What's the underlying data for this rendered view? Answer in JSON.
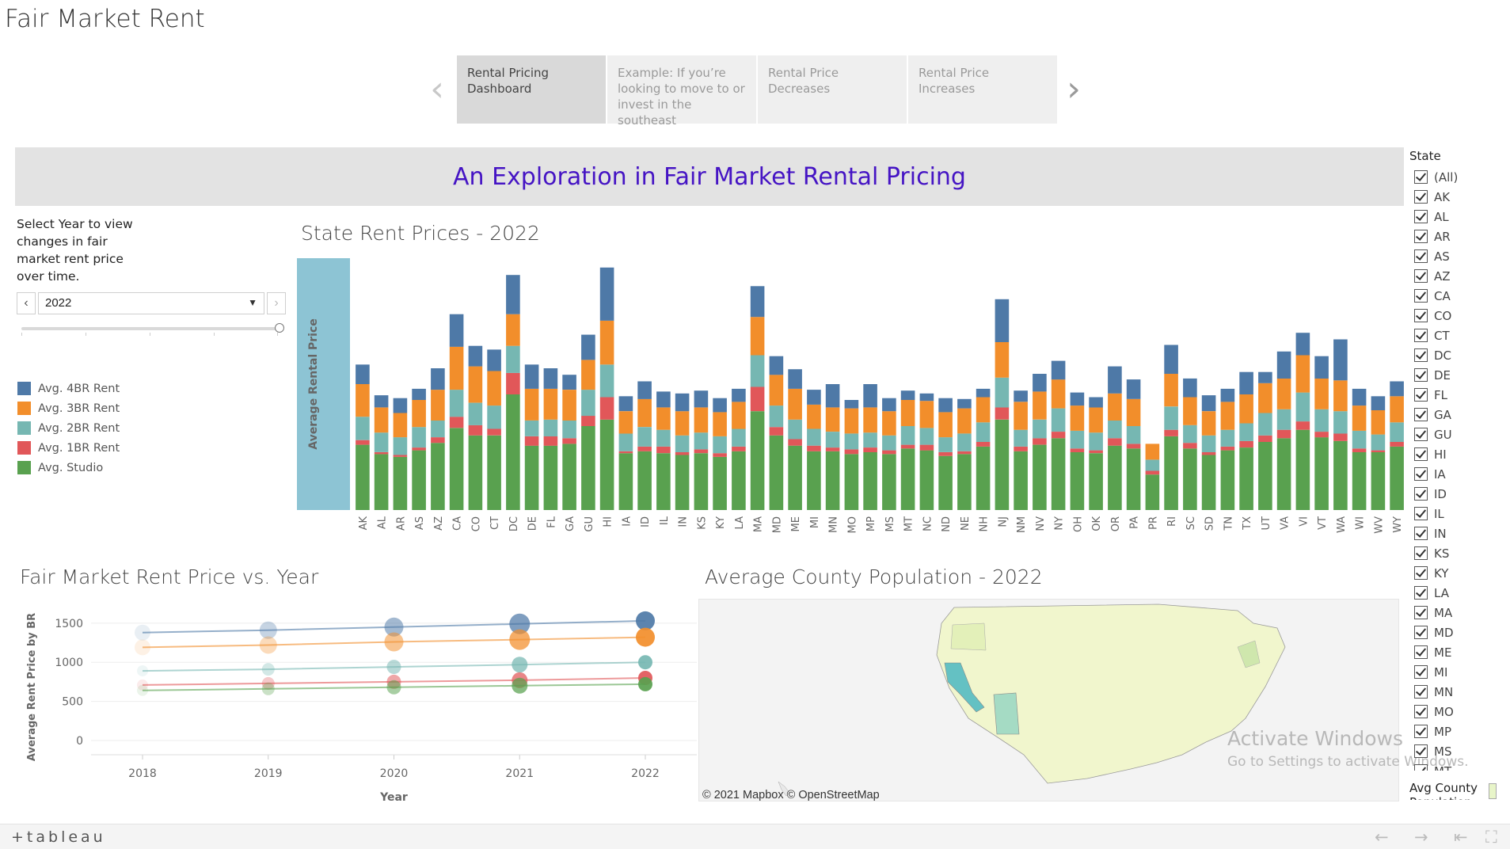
{
  "story": {
    "title": "Fair Market Rent",
    "prev_arrow": "‹",
    "next_arrow": "›",
    "points": [
      {
        "label": "Rental Pricing Dashboard",
        "active": true
      },
      {
        "label": "Example: If you’re looking to move to or invest in the southeast",
        "active": false
      },
      {
        "label": "Rental Price Decreases",
        "active": false
      },
      {
        "label": "Rental Price Increases",
        "active": false
      }
    ]
  },
  "banner": {
    "title": "An Exploration in Fair Market Rental Pricing"
  },
  "year_control": {
    "note": "Select Year to view changes in fair market rent price over time.",
    "selected": "2022",
    "prev": "‹",
    "next": "›"
  },
  "legend": [
    {
      "label": "Avg. 4BR Rent",
      "color": "#4e79a7"
    },
    {
      "label": "Avg. 3BR Rent",
      "color": "#f28e2b"
    },
    {
      "label": "Avg. 2BR Rent",
      "color": "#76b7b2"
    },
    {
      "label": "Avg. 1BR Rent",
      "color": "#e15759"
    },
    {
      "label": "Avg. Studio",
      "color": "#59a14f"
    }
  ],
  "chart_data": [
    {
      "type": "bar",
      "title": "State Rent Prices - 2022",
      "ylabel": "Average Rental Price",
      "stacked": true,
      "categories": [
        "AK",
        "AL",
        "AR",
        "AS",
        "AZ",
        "CA",
        "CO",
        "CT",
        "DC",
        "DE",
        "FL",
        "GA",
        "GU",
        "HI",
        "IA",
        "ID",
        "IL",
        "IN",
        "KS",
        "KY",
        "LA",
        "MA",
        "MD",
        "ME",
        "MI",
        "MN",
        "MO",
        "MP",
        "MS",
        "MT",
        "NC",
        "ND",
        "NE",
        "NH",
        "NJ",
        "NM",
        "NV",
        "NY",
        "OH",
        "OK",
        "OR",
        "PA",
        "PR",
        "RI",
        "SC",
        "SD",
        "TN",
        "TX",
        "UT",
        "VA",
        "VI",
        "VT",
        "WA",
        "WI",
        "WV",
        "WY"
      ],
      "series": [
        {
          "name": "Avg. Studio",
          "color": "#59a14f",
          "values": [
            700,
            600,
            570,
            640,
            720,
            880,
            800,
            800,
            1240,
            690,
            690,
            710,
            900,
            970,
            610,
            630,
            610,
            590,
            610,
            570,
            630,
            1060,
            800,
            690,
            630,
            630,
            600,
            620,
            600,
            660,
            640,
            580,
            600,
            680,
            970,
            630,
            700,
            770,
            620,
            610,
            690,
            660,
            380,
            790,
            660,
            590,
            640,
            670,
            730,
            770,
            860,
            780,
            740,
            620,
            620,
            680
          ]
        },
        {
          "name": "Avg. 1BR Rent",
          "color": "#e15759",
          "values": [
            750,
            620,
            590,
            670,
            780,
            1000,
            910,
            870,
            1470,
            790,
            790,
            770,
            1010,
            1210,
            630,
            680,
            680,
            620,
            650,
            610,
            680,
            1320,
            890,
            760,
            690,
            670,
            650,
            670,
            640,
            700,
            700,
            620,
            630,
            730,
            1100,
            680,
            770,
            840,
            660,
            640,
            770,
            710,
            420,
            860,
            720,
            620,
            680,
            740,
            800,
            860,
            950,
            840,
            820,
            660,
            640,
            730
          ]
        },
        {
          "name": "Avg. 2BR Rent",
          "color": "#76b7b2",
          "values": [
            1000,
            830,
            780,
            890,
            960,
            1290,
            1150,
            1120,
            1760,
            960,
            970,
            960,
            1290,
            1560,
            820,
            890,
            860,
            800,
            830,
            790,
            870,
            1660,
            1120,
            970,
            870,
            840,
            820,
            830,
            800,
            900,
            880,
            780,
            820,
            940,
            1420,
            860,
            970,
            1090,
            850,
            830,
            960,
            900,
            540,
            1110,
            910,
            800,
            860,
            930,
            1040,
            1080,
            1260,
            1080,
            1060,
            850,
            810,
            940
          ]
        },
        {
          "name": "Avg. 3BR Rent",
          "color": "#f28e2b",
          "values": [
            1350,
            1100,
            1040,
            1180,
            1290,
            1750,
            1540,
            1490,
            2100,
            1300,
            1300,
            1290,
            1610,
            2030,
            1060,
            1190,
            1100,
            1060,
            1100,
            1050,
            1160,
            2070,
            1450,
            1300,
            1130,
            1100,
            1090,
            1100,
            1060,
            1180,
            1170,
            1050,
            1090,
            1210,
            1800,
            1160,
            1270,
            1400,
            1120,
            1100,
            1250,
            1190,
            710,
            1460,
            1210,
            1060,
            1160,
            1240,
            1360,
            1410,
            1660,
            1410,
            1390,
            1120,
            1070,
            1220
          ]
        },
        {
          "name": "Avg. 4BR Rent",
          "color": "#4e79a7",
          "values": [
            1560,
            1230,
            1200,
            1300,
            1520,
            2100,
            1760,
            1720,
            2520,
            1560,
            1520,
            1450,
            1880,
            2600,
            1220,
            1380,
            1270,
            1250,
            1280,
            1200,
            1300,
            2400,
            1650,
            1510,
            1290,
            1350,
            1180,
            1350,
            1200,
            1280,
            1250,
            1200,
            1190,
            1300,
            2260,
            1280,
            1460,
            1600,
            1260,
            1210,
            1540,
            1400,
            620,
            1770,
            1410,
            1230,
            1300,
            1480,
            1480,
            1700,
            1900,
            1650,
            1830,
            1300,
            1220,
            1380
          ]
        }
      ]
    },
    {
      "type": "line",
      "title": "Fair Market Rent Price vs. Year",
      "xlabel": "Year",
      "ylabel": "Average Rent Price by BR",
      "x": [
        2018,
        2019,
        2020,
        2021,
        2022
      ],
      "ylim": [
        0,
        1650
      ],
      "y_ticks": [
        0,
        500,
        1000,
        1500
      ],
      "series": [
        {
          "name": "Avg. 4BR Rent",
          "color": "#4e79a7",
          "values": [
            1380,
            1410,
            1450,
            1490,
            1530
          ]
        },
        {
          "name": "Avg. 3BR Rent",
          "color": "#f28e2b",
          "values": [
            1190,
            1220,
            1260,
            1290,
            1320
          ]
        },
        {
          "name": "Avg. 2BR Rent",
          "color": "#76b7b2",
          "values": [
            890,
            910,
            940,
            970,
            1000
          ]
        },
        {
          "name": "Avg. 1BR Rent",
          "color": "#e15759",
          "values": [
            710,
            730,
            750,
            770,
            800
          ]
        },
        {
          "name": "Avg. Studio",
          "color": "#59a14f",
          "values": [
            640,
            660,
            680,
            700,
            720
          ]
        }
      ]
    }
  ],
  "map": {
    "title": "Average County Population - 2022",
    "credit": "© 2021 Mapbox  © OpenStreetMap",
    "watermark_title": "Activate Windows",
    "watermark_sub": "Go to Settings to activate Windows."
  },
  "state_filter": {
    "title": "State",
    "items": [
      "(All)",
      "AK",
      "AL",
      "AR",
      "AS",
      "AZ",
      "CA",
      "CO",
      "CT",
      "DC",
      "DE",
      "FL",
      "GA",
      "GU",
      "HI",
      "IA",
      "ID",
      "IL",
      "IN",
      "KS",
      "KY",
      "LA",
      "MA",
      "MD",
      "ME",
      "MI",
      "MN",
      "MO",
      "MP",
      "MS",
      "MT"
    ],
    "pop_legend_title": "Avg County Population"
  },
  "toolbar": {
    "logo": "+tableau",
    "undo": "←",
    "redo": "→",
    "revert": "⇤",
    "fullscreen": "⛶"
  }
}
